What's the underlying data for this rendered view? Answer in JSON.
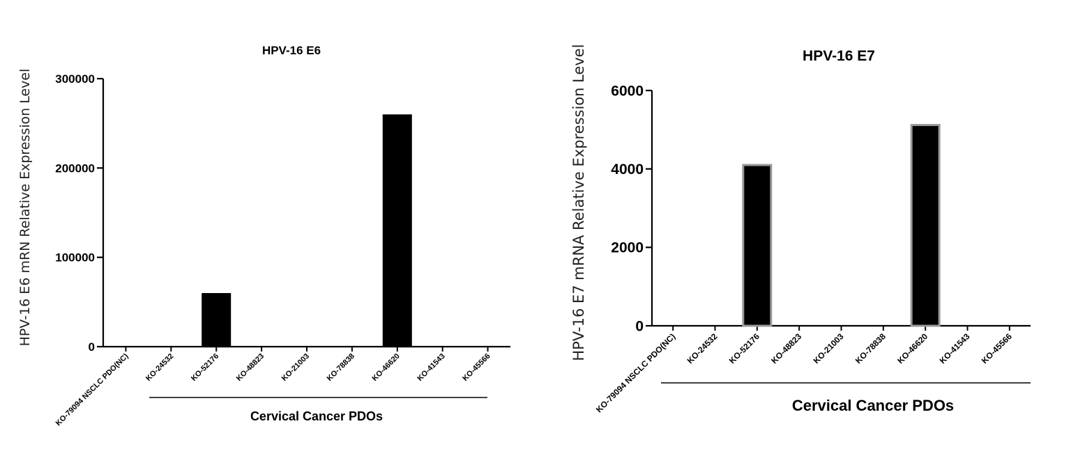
{
  "chart_data": [
    {
      "type": "bar",
      "title": "HPV-16 E6",
      "ylabel": "HPV-16 E6 mRN Relative Expression Level",
      "xlabel": "",
      "group_label": "Cervical Cancer PDOs",
      "categories": [
        "KO-79094 NSCLC PDO(NC)",
        "KO-24532",
        "KO-52176",
        "KO-48823",
        "KO-21003",
        "KO-78838",
        "KO-46620",
        "KO-41543",
        "KO-45566"
      ],
      "values": [
        0,
        0,
        60000,
        0,
        0,
        0,
        260000,
        0,
        0
      ],
      "ylim": [
        0,
        300000
      ],
      "yticks": [
        0,
        100000,
        200000,
        300000
      ],
      "ytick_labels": [
        "0",
        "100000",
        "200000",
        "300000"
      ],
      "bar_color": "#000000",
      "bar_edge_color": "#000000"
    },
    {
      "type": "bar",
      "title": "HPV-16 E7",
      "ylabel": "HPV-16 E7 mRNA Relative Expression Level",
      "xlabel": "",
      "group_label": "Cervical Cancer PDOs",
      "categories": [
        "KO-79094 NSCLC PDO(NC)",
        "KO-24532",
        "KO-52176",
        "KO-48823",
        "KO-21003",
        "KO-78838",
        "KO-46620",
        "KO-41543",
        "KO-45566"
      ],
      "values": [
        0,
        0,
        4100,
        0,
        0,
        0,
        5120,
        0,
        0
      ],
      "ylim": [
        0,
        6000
      ],
      "yticks": [
        0,
        2000,
        4000,
        6000
      ],
      "ytick_labels": [
        "0",
        "2000",
        "4000",
        "6000"
      ],
      "bar_color": "#000000",
      "bar_edge_color": "#999999"
    }
  ]
}
